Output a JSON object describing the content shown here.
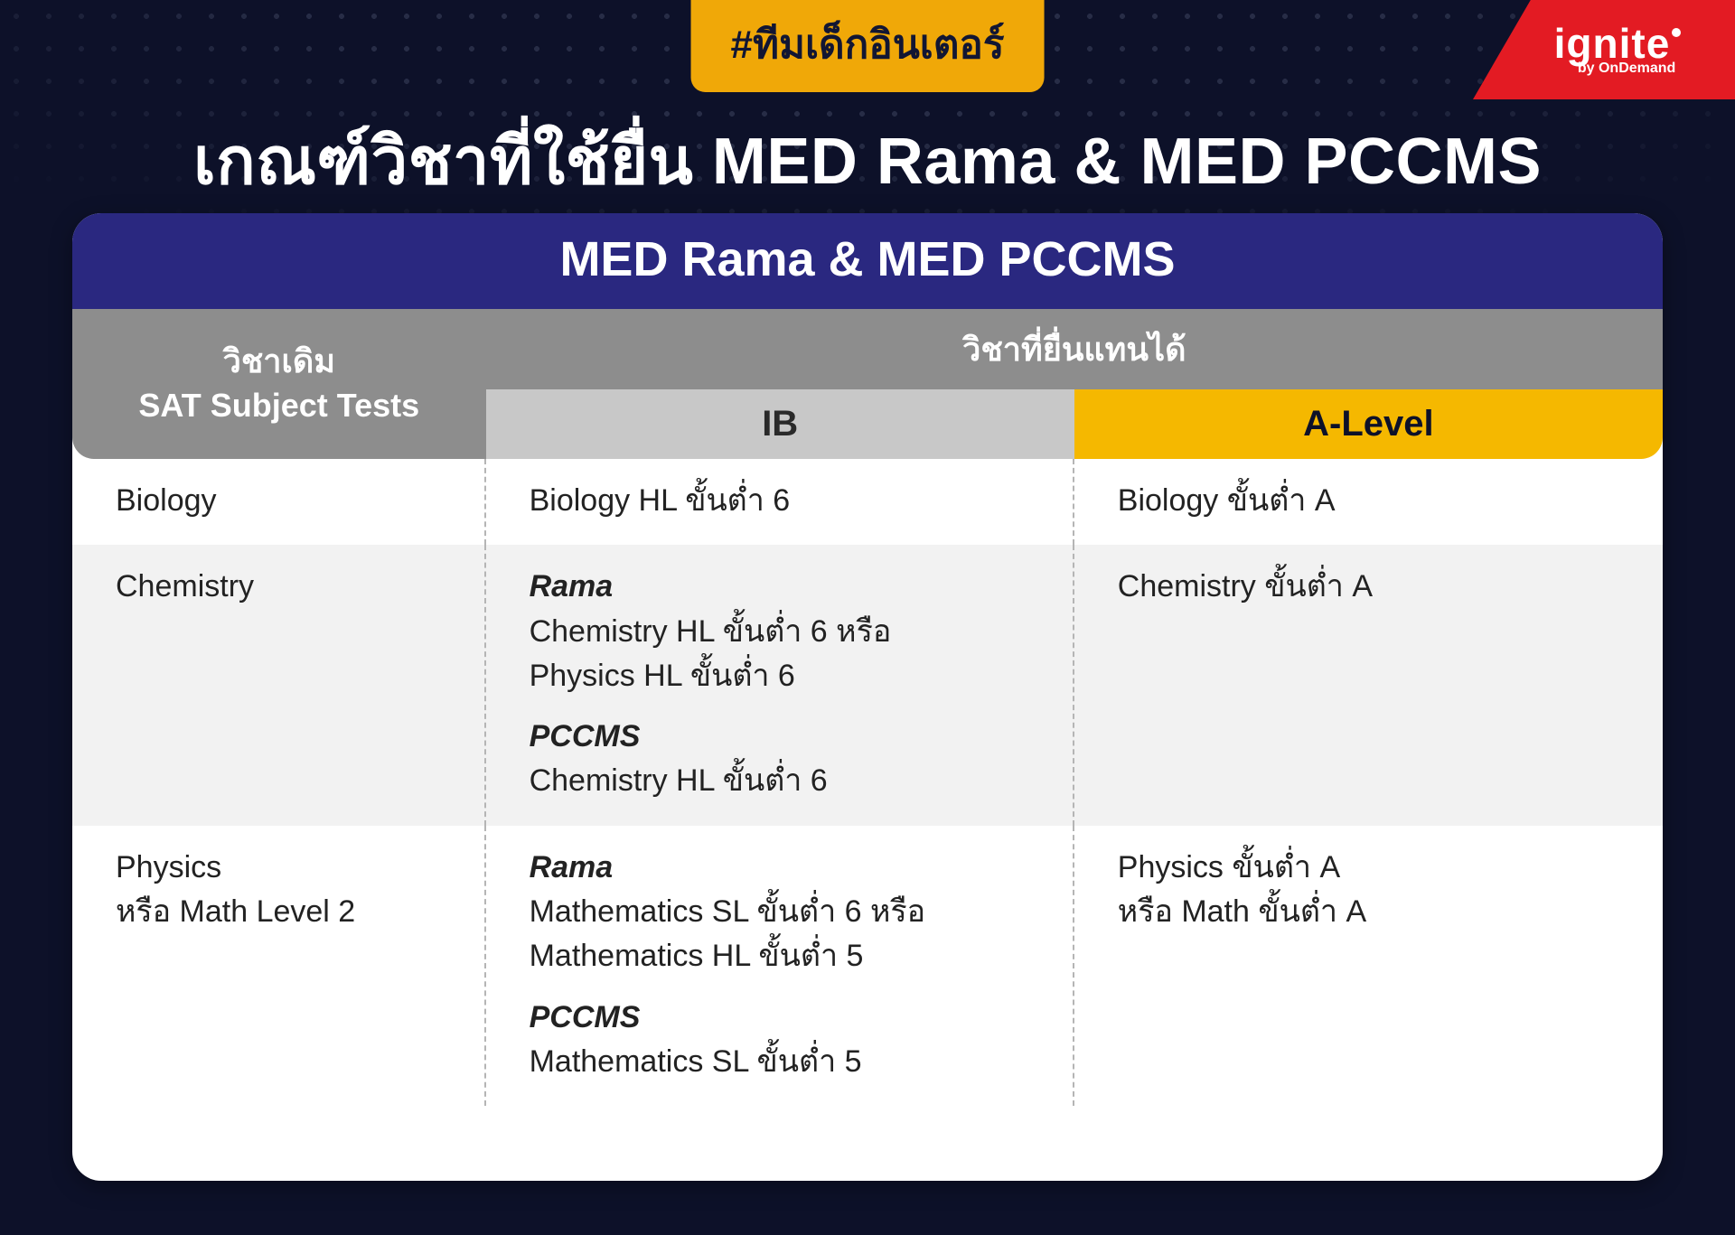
{
  "colors": {
    "page_bg": "#0d1129",
    "accent_yellow": "#f0a808",
    "brand_red": "#e31b23",
    "header_purple": "#2a2880",
    "th_gray": "#8d8d8d",
    "th_light_gray": "#c8c8c8",
    "th_yellow": "#f5b800",
    "row_alt": "#f2f2f2",
    "text_dark": "#222222"
  },
  "brand": {
    "logo_main": "ignite",
    "logo_sub": "by OnDemand"
  },
  "hashtag": "#ทีมเด็กอินเตอร์",
  "title": "เกณฑ์วิชาที่ใช้ยื่น MED Rama & MED PCCMS",
  "card_header": "MED Rama & MED PCCMS",
  "table": {
    "head": {
      "sat_line1": "วิชาเดิม",
      "sat_line2": "SAT Subject Tests",
      "sub_header": "วิชาที่ยื่นแทนได้",
      "ib": "IB",
      "alevel": "A-Level"
    },
    "rows": [
      {
        "sat": [
          "Biology"
        ],
        "ib": [
          {
            "head": null,
            "lines": [
              "Biology HL ขั้นต่ำ 6"
            ]
          }
        ],
        "al": [
          "Biology ขั้นต่ำ A"
        ]
      },
      {
        "sat": [
          "Chemistry"
        ],
        "ib": [
          {
            "head": "Rama",
            "lines": [
              "Chemistry HL ขั้นต่ำ 6 หรือ",
              "Physics HL ขั้นต่ำ 6"
            ]
          },
          {
            "head": "PCCMS",
            "lines": [
              "Chemistry HL ขั้นต่ำ 6"
            ]
          }
        ],
        "al": [
          "Chemistry ขั้นต่ำ A"
        ]
      },
      {
        "sat": [
          "Physics",
          "หรือ Math Level 2"
        ],
        "ib": [
          {
            "head": "Rama",
            "lines": [
              "Mathematics SL ขั้นต่ำ 6 หรือ",
              "Mathematics HL ขั้นต่ำ 5"
            ]
          },
          {
            "head": "PCCMS",
            "lines": [
              "Mathematics SL ขั้นต่ำ 5"
            ]
          }
        ],
        "al": [
          "Physics ขั้นต่ำ A",
          "หรือ Math ขั้นต่ำ A"
        ]
      }
    ]
  }
}
